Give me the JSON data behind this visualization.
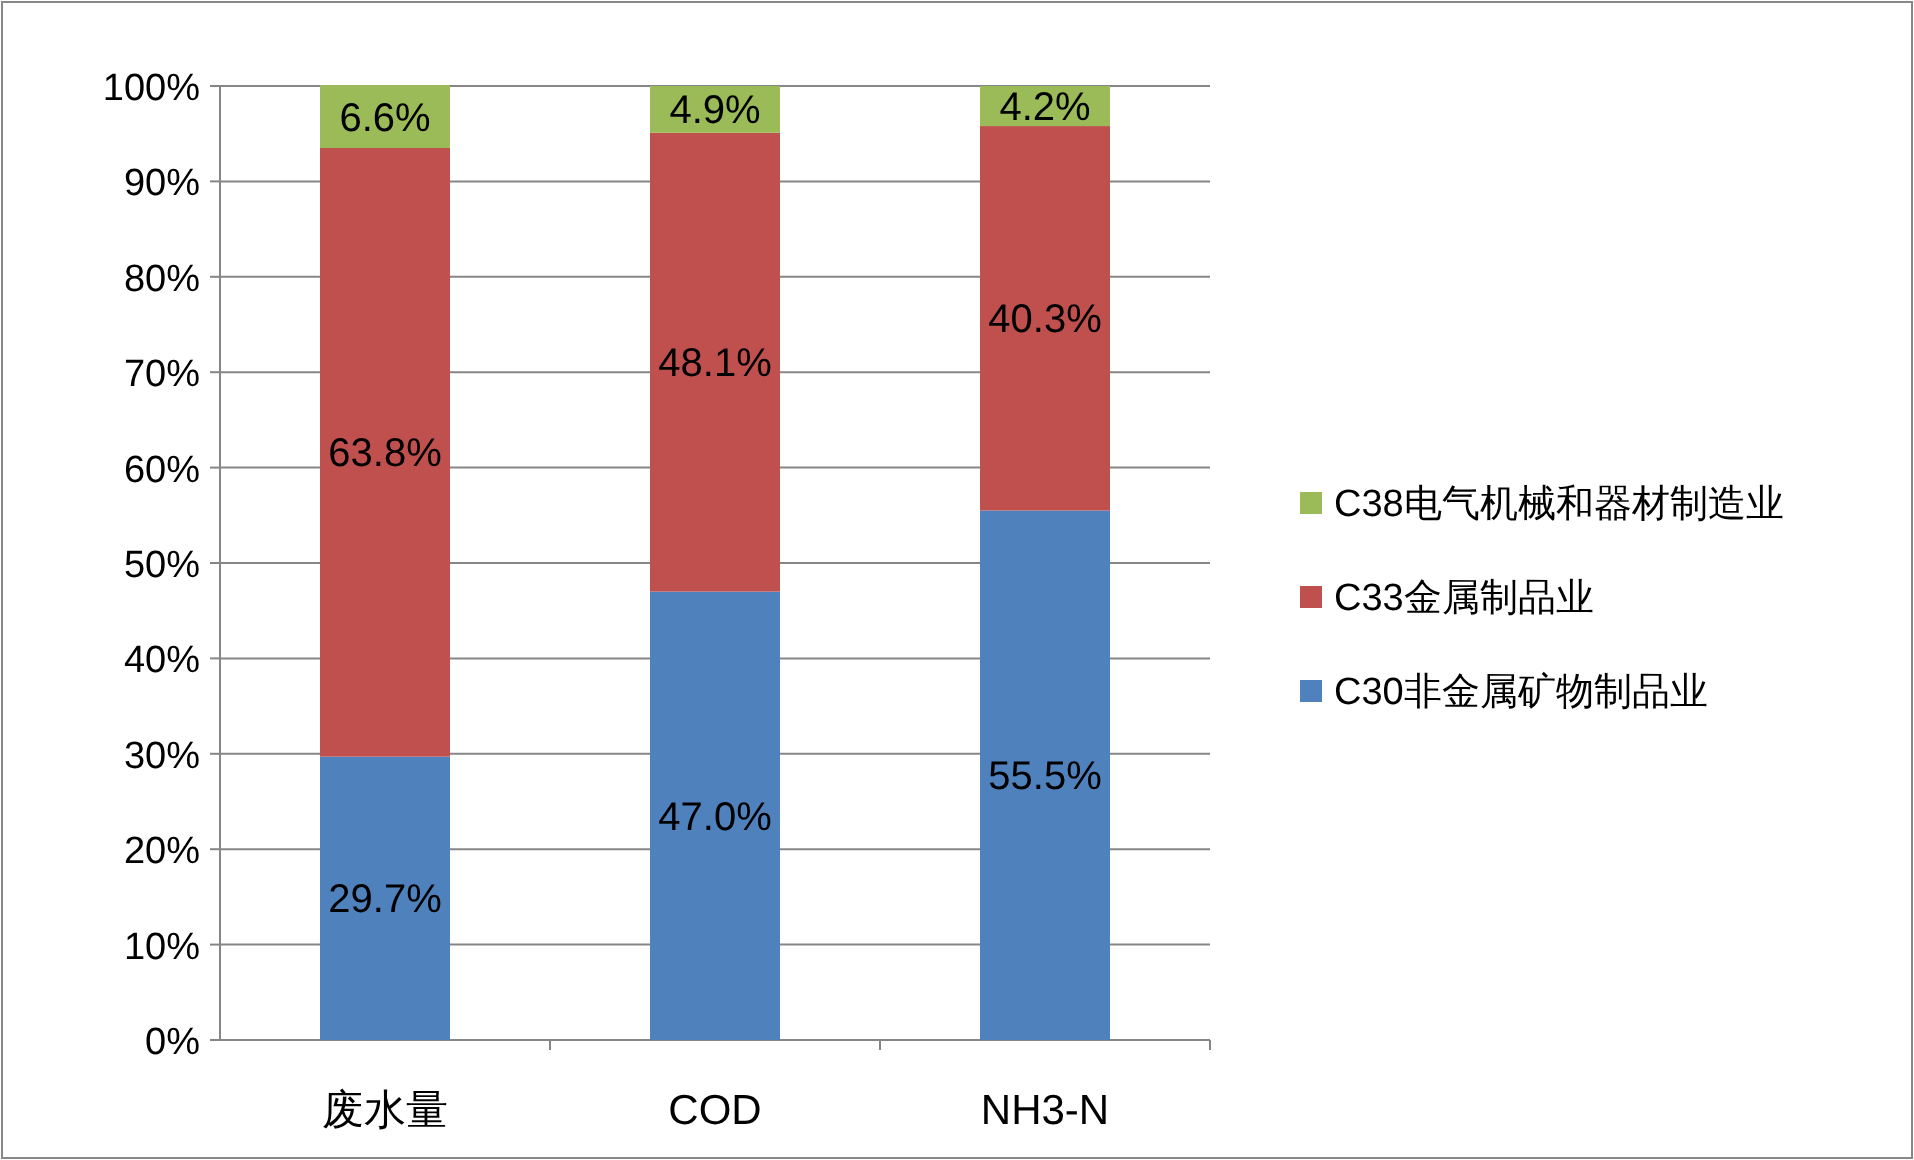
{
  "chart_data": {
    "type": "bar",
    "stacked": true,
    "categories": [
      "废水量",
      "COD",
      "NH3-N"
    ],
    "series": [
      {
        "name": "C30非金属矿物制品业",
        "color": "#4f81bd",
        "values": [
          29.7,
          47.0,
          55.5
        ],
        "value_labels": [
          "29.7%",
          "47.0%",
          "55.5%"
        ]
      },
      {
        "name": "C33金属制品业",
        "color": "#c0504d",
        "values": [
          63.8,
          48.1,
          40.3
        ],
        "value_labels": [
          "63.8%",
          "48.1%",
          "40.3%"
        ]
      },
      {
        "name": "C38电气机械和器材制造业",
        "color": "#9bbb59",
        "values": [
          6.6,
          4.9,
          4.2
        ],
        "value_labels": [
          "6.6%",
          "4.9%",
          "4.2%"
        ]
      }
    ],
    "ylim": [
      0,
      100.1
    ],
    "yticks": [
      {
        "value": 0,
        "label": "0%"
      },
      {
        "value": 10,
        "label": "10%"
      },
      {
        "value": 20,
        "label": "20%"
      },
      {
        "value": 30,
        "label": "30%"
      },
      {
        "value": 40,
        "label": "40%"
      },
      {
        "value": 50,
        "label": "50%"
      },
      {
        "value": 60,
        "label": "60%"
      },
      {
        "value": 70,
        "label": "70%"
      },
      {
        "value": 80,
        "label": "80%"
      },
      {
        "value": 90,
        "label": "90%"
      },
      {
        "value": 100,
        "label": "100%"
      }
    ],
    "grid": "y",
    "legend": "right"
  }
}
